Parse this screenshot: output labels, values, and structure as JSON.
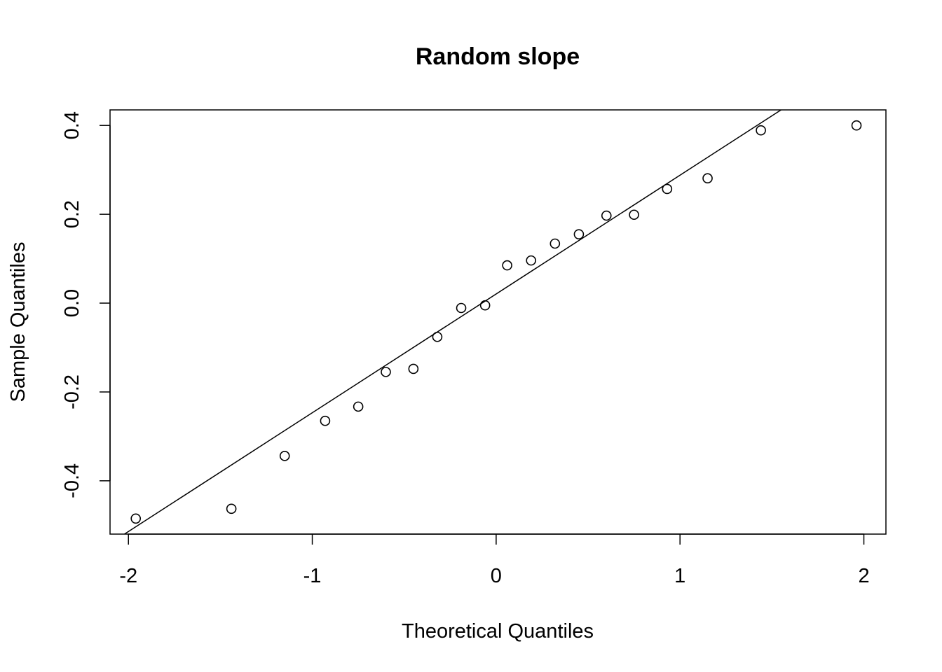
{
  "chart_data": {
    "type": "scatter",
    "title": "Random slope",
    "xlabel": "Theoretical Quantiles",
    "ylabel": "Sample Quantiles",
    "xlim": [
      -2.1,
      2.12
    ],
    "ylim": [
      -0.52,
      0.435
    ],
    "x_ticks": [
      -2,
      -1,
      0,
      1,
      2
    ],
    "x_tick_labels": [
      "-2",
      "-1",
      "0",
      "1",
      "2"
    ],
    "y_ticks": [
      -0.4,
      -0.2,
      0.0,
      0.2,
      0.4
    ],
    "y_tick_labels": [
      "-0.4",
      "-0.2",
      "0.0",
      "0.2",
      "0.4"
    ],
    "grid": false,
    "points": [
      {
        "x": -1.96,
        "y": -0.485
      },
      {
        "x": -1.44,
        "y": -0.463
      },
      {
        "x": -1.15,
        "y": -0.344
      },
      {
        "x": -0.93,
        "y": -0.265
      },
      {
        "x": -0.75,
        "y": -0.233
      },
      {
        "x": -0.6,
        "y": -0.155
      },
      {
        "x": -0.45,
        "y": -0.148
      },
      {
        "x": -0.32,
        "y": -0.076
      },
      {
        "x": -0.19,
        "y": -0.011
      },
      {
        "x": -0.06,
        "y": -0.005
      },
      {
        "x": 0.06,
        "y": 0.085
      },
      {
        "x": 0.19,
        "y": 0.096
      },
      {
        "x": 0.32,
        "y": 0.134
      },
      {
        "x": 0.45,
        "y": 0.155
      },
      {
        "x": 0.6,
        "y": 0.197
      },
      {
        "x": 0.75,
        "y": 0.199
      },
      {
        "x": 0.93,
        "y": 0.257
      },
      {
        "x": 1.15,
        "y": 0.281
      },
      {
        "x": 1.44,
        "y": 0.389
      },
      {
        "x": 1.96,
        "y": 0.4
      }
    ],
    "reference_line": {
      "intercept": 0.0206,
      "slope": 0.2674
    }
  }
}
